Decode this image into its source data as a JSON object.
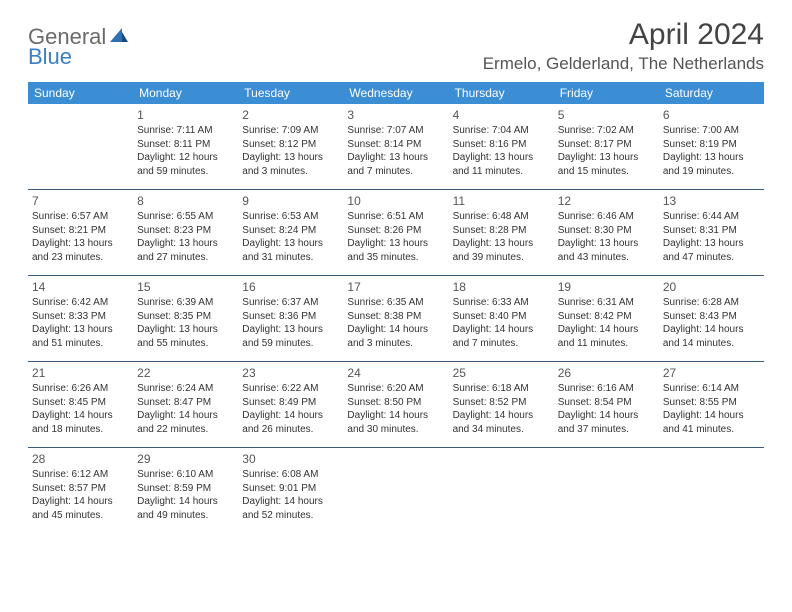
{
  "logo": {
    "text1": "General",
    "text2": "Blue"
  },
  "title": "April 2024",
  "location": "Ermelo, Gelderland, The Netherlands",
  "weekdays": [
    "Sunday",
    "Monday",
    "Tuesday",
    "Wednesday",
    "Thursday",
    "Friday",
    "Saturday"
  ],
  "colors": {
    "header_bg": "#3b8dd4",
    "header_text": "#ffffff",
    "border": "#3b5a7a",
    "text": "#333333",
    "title_text": "#444444",
    "logo_gray": "#6b6b6b",
    "logo_blue": "#3b7fc4"
  },
  "weeks": [
    [
      null,
      {
        "n": "1",
        "sr": "Sunrise: 7:11 AM",
        "ss": "Sunset: 8:11 PM",
        "d1": "Daylight: 12 hours",
        "d2": "and 59 minutes."
      },
      {
        "n": "2",
        "sr": "Sunrise: 7:09 AM",
        "ss": "Sunset: 8:12 PM",
        "d1": "Daylight: 13 hours",
        "d2": "and 3 minutes."
      },
      {
        "n": "3",
        "sr": "Sunrise: 7:07 AM",
        "ss": "Sunset: 8:14 PM",
        "d1": "Daylight: 13 hours",
        "d2": "and 7 minutes."
      },
      {
        "n": "4",
        "sr": "Sunrise: 7:04 AM",
        "ss": "Sunset: 8:16 PM",
        "d1": "Daylight: 13 hours",
        "d2": "and 11 minutes."
      },
      {
        "n": "5",
        "sr": "Sunrise: 7:02 AM",
        "ss": "Sunset: 8:17 PM",
        "d1": "Daylight: 13 hours",
        "d2": "and 15 minutes."
      },
      {
        "n": "6",
        "sr": "Sunrise: 7:00 AM",
        "ss": "Sunset: 8:19 PM",
        "d1": "Daylight: 13 hours",
        "d2": "and 19 minutes."
      }
    ],
    [
      {
        "n": "7",
        "sr": "Sunrise: 6:57 AM",
        "ss": "Sunset: 8:21 PM",
        "d1": "Daylight: 13 hours",
        "d2": "and 23 minutes."
      },
      {
        "n": "8",
        "sr": "Sunrise: 6:55 AM",
        "ss": "Sunset: 8:23 PM",
        "d1": "Daylight: 13 hours",
        "d2": "and 27 minutes."
      },
      {
        "n": "9",
        "sr": "Sunrise: 6:53 AM",
        "ss": "Sunset: 8:24 PM",
        "d1": "Daylight: 13 hours",
        "d2": "and 31 minutes."
      },
      {
        "n": "10",
        "sr": "Sunrise: 6:51 AM",
        "ss": "Sunset: 8:26 PM",
        "d1": "Daylight: 13 hours",
        "d2": "and 35 minutes."
      },
      {
        "n": "11",
        "sr": "Sunrise: 6:48 AM",
        "ss": "Sunset: 8:28 PM",
        "d1": "Daylight: 13 hours",
        "d2": "and 39 minutes."
      },
      {
        "n": "12",
        "sr": "Sunrise: 6:46 AM",
        "ss": "Sunset: 8:30 PM",
        "d1": "Daylight: 13 hours",
        "d2": "and 43 minutes."
      },
      {
        "n": "13",
        "sr": "Sunrise: 6:44 AM",
        "ss": "Sunset: 8:31 PM",
        "d1": "Daylight: 13 hours",
        "d2": "and 47 minutes."
      }
    ],
    [
      {
        "n": "14",
        "sr": "Sunrise: 6:42 AM",
        "ss": "Sunset: 8:33 PM",
        "d1": "Daylight: 13 hours",
        "d2": "and 51 minutes."
      },
      {
        "n": "15",
        "sr": "Sunrise: 6:39 AM",
        "ss": "Sunset: 8:35 PM",
        "d1": "Daylight: 13 hours",
        "d2": "and 55 minutes."
      },
      {
        "n": "16",
        "sr": "Sunrise: 6:37 AM",
        "ss": "Sunset: 8:36 PM",
        "d1": "Daylight: 13 hours",
        "d2": "and 59 minutes."
      },
      {
        "n": "17",
        "sr": "Sunrise: 6:35 AM",
        "ss": "Sunset: 8:38 PM",
        "d1": "Daylight: 14 hours",
        "d2": "and 3 minutes."
      },
      {
        "n": "18",
        "sr": "Sunrise: 6:33 AM",
        "ss": "Sunset: 8:40 PM",
        "d1": "Daylight: 14 hours",
        "d2": "and 7 minutes."
      },
      {
        "n": "19",
        "sr": "Sunrise: 6:31 AM",
        "ss": "Sunset: 8:42 PM",
        "d1": "Daylight: 14 hours",
        "d2": "and 11 minutes."
      },
      {
        "n": "20",
        "sr": "Sunrise: 6:28 AM",
        "ss": "Sunset: 8:43 PM",
        "d1": "Daylight: 14 hours",
        "d2": "and 14 minutes."
      }
    ],
    [
      {
        "n": "21",
        "sr": "Sunrise: 6:26 AM",
        "ss": "Sunset: 8:45 PM",
        "d1": "Daylight: 14 hours",
        "d2": "and 18 minutes."
      },
      {
        "n": "22",
        "sr": "Sunrise: 6:24 AM",
        "ss": "Sunset: 8:47 PM",
        "d1": "Daylight: 14 hours",
        "d2": "and 22 minutes."
      },
      {
        "n": "23",
        "sr": "Sunrise: 6:22 AM",
        "ss": "Sunset: 8:49 PM",
        "d1": "Daylight: 14 hours",
        "d2": "and 26 minutes."
      },
      {
        "n": "24",
        "sr": "Sunrise: 6:20 AM",
        "ss": "Sunset: 8:50 PM",
        "d1": "Daylight: 14 hours",
        "d2": "and 30 minutes."
      },
      {
        "n": "25",
        "sr": "Sunrise: 6:18 AM",
        "ss": "Sunset: 8:52 PM",
        "d1": "Daylight: 14 hours",
        "d2": "and 34 minutes."
      },
      {
        "n": "26",
        "sr": "Sunrise: 6:16 AM",
        "ss": "Sunset: 8:54 PM",
        "d1": "Daylight: 14 hours",
        "d2": "and 37 minutes."
      },
      {
        "n": "27",
        "sr": "Sunrise: 6:14 AM",
        "ss": "Sunset: 8:55 PM",
        "d1": "Daylight: 14 hours",
        "d2": "and 41 minutes."
      }
    ],
    [
      {
        "n": "28",
        "sr": "Sunrise: 6:12 AM",
        "ss": "Sunset: 8:57 PM",
        "d1": "Daylight: 14 hours",
        "d2": "and 45 minutes."
      },
      {
        "n": "29",
        "sr": "Sunrise: 6:10 AM",
        "ss": "Sunset: 8:59 PM",
        "d1": "Daylight: 14 hours",
        "d2": "and 49 minutes."
      },
      {
        "n": "30",
        "sr": "Sunrise: 6:08 AM",
        "ss": "Sunset: 9:01 PM",
        "d1": "Daylight: 14 hours",
        "d2": "and 52 minutes."
      },
      null,
      null,
      null,
      null
    ]
  ]
}
